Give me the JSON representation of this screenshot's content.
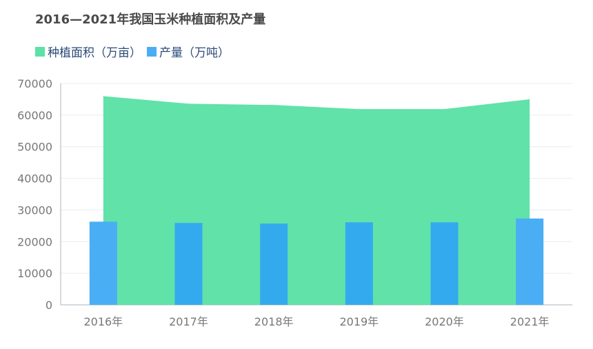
{
  "chart_data": {
    "type": "area+bar",
    "title": "2016—2021年我国玉米种植面积及产量",
    "categories": [
      "2016年",
      "2017年",
      "2018年",
      "2019年",
      "2020年",
      "2021年"
    ],
    "series": [
      {
        "name": "种植面积（万亩）",
        "type": "area",
        "color": "#5ce1a6",
        "values": [
          66000,
          63600,
          63200,
          61900,
          61900,
          65000
        ]
      },
      {
        "name": "产量（万吨）",
        "type": "bar",
        "color": "#4aaef5",
        "values": [
          26300,
          25900,
          25700,
          26100,
          26100,
          27300
        ]
      }
    ],
    "y_ticks": [
      "0",
      "10000",
      "20000",
      "30000",
      "40000",
      "50000",
      "60000",
      "70000"
    ],
    "ylim": [
      0,
      70000
    ],
    "grid": true,
    "legend_position": "top-left"
  }
}
